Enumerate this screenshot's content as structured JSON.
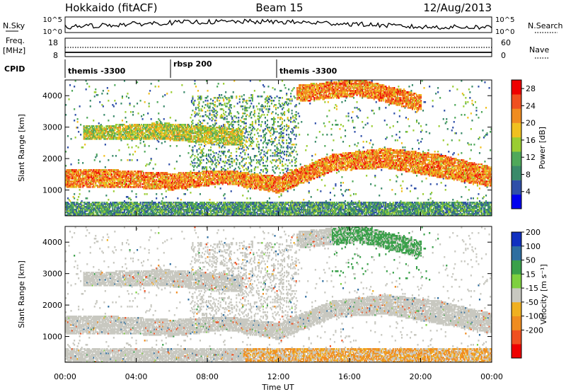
{
  "header": {
    "left": "Hokkaido (fitACF)",
    "center": "Beam 15",
    "right": "12/Aug/2013"
  },
  "top_panels": {
    "nsky_label": "N.Sky",
    "nsky_ticks": [
      "10^5",
      "10^0"
    ],
    "nsearch_label": "N.Search",
    "nsearch_ticks": [
      "10^5",
      "10^0"
    ],
    "freq_label_1": "Freq.",
    "freq_label_2": "[MHz]",
    "freq_ticks": [
      "18",
      "8"
    ],
    "nave_label": "Nave",
    "nave_ticks": [
      "60",
      "0"
    ],
    "cpid_label": "CPID",
    "cpid_segments": [
      {
        "label": "themis -3300",
        "start_hour": 0
      },
      {
        "label": "rbsp 200",
        "start_hour": 6
      },
      {
        "label": "themis -3300",
        "start_hour": 12
      }
    ]
  },
  "colors": {
    "power_scale": [
      "#0000ee",
      "#2f4fa8",
      "#3a8a6a",
      "#4fa85a",
      "#9acd32",
      "#f0c020",
      "#f08c20",
      "#f05020",
      "#ee0000"
    ],
    "velocity_scale": [
      "#ee0000",
      "#f05020",
      "#f08c20",
      "#f0b020",
      "#c8c8c0",
      "#7ed040",
      "#3aa04a",
      "#2e6ea0",
      "#1030c0"
    ],
    "ground_scatter": "#c8c8c0"
  },
  "chart_data": [
    {
      "type": "heatmap",
      "title": "",
      "ylabel": "Slant Range [km]",
      "xlabel": "",
      "x_range_hours": [
        0,
        24
      ],
      "ylim": [
        180,
        4500
      ],
      "y_ticks": [
        "1000",
        "2000",
        "3000",
        "4000"
      ],
      "colorbar": {
        "label": "Power [dB]",
        "ticks": [
          "4",
          "8",
          "12",
          "16",
          "20",
          "24",
          "28"
        ],
        "range": [
          0,
          30
        ]
      },
      "bands": [
        {
          "t": [
            0,
            24
          ],
          "range_km": [
            [
              1500,
              1200
            ],
            [
              1500,
              1200
            ],
            [
              1400,
              1100
            ],
            [
              1500,
              1300
            ],
            [
              1300,
              1000
            ],
            [
              2000,
              1700
            ],
            [
              2200,
              1800
            ],
            [
              2000,
              1500
            ],
            [
              1600,
              1200
            ]
          ],
          "power_db": 22
        },
        {
          "t": [
            1,
            10
          ],
          "range_km": [
            [
              2900,
              2700
            ],
            [
              3000,
              2700
            ],
            [
              2800,
              2500
            ]
          ],
          "power_db": 16
        },
        {
          "t": [
            13,
            20
          ],
          "range_km": [
            [
              3900,
              4200
            ],
            [
              4100,
              4400
            ],
            [
              3600,
              3900
            ]
          ],
          "power_db": 22
        },
        {
          "t": [
            0,
            24
          ],
          "range_km": [
            [
              500,
              250
            ],
            [
              500,
              250
            ]
          ],
          "power_db": 10
        }
      ]
    },
    {
      "type": "heatmap",
      "title": "",
      "ylabel": "Slant Range [km]",
      "xlabel": "Time UT",
      "x_range_hours": [
        0,
        24
      ],
      "x_ticks": [
        "00:00",
        "04:00",
        "08:00",
        "12:00",
        "16:00",
        "20:00",
        "00:00"
      ],
      "ylim": [
        180,
        4500
      ],
      "y_ticks": [
        "1000",
        "2000",
        "3000",
        "4000"
      ],
      "colorbar": {
        "label": "Velocity [m s⁻¹]",
        "ticks": [
          "200",
          "100",
          "50",
          "15",
          "-15",
          "-50",
          "-100",
          "-200"
        ],
        "range": [
          -250,
          250
        ]
      }
    }
  ]
}
